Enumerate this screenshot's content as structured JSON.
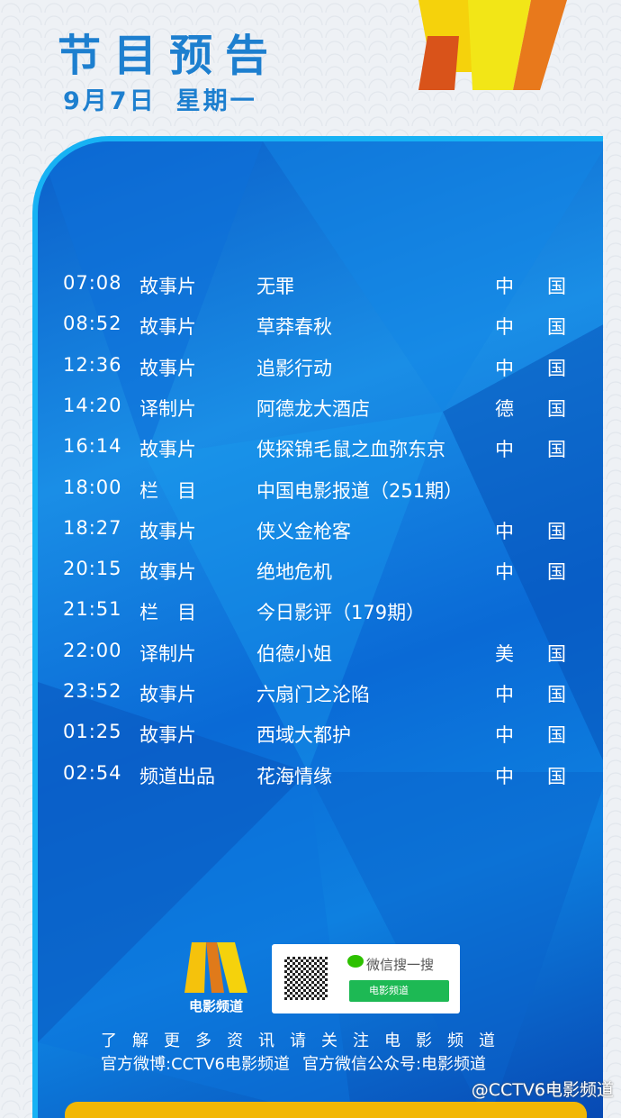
{
  "header": {
    "title": "节目预告",
    "date": "9月7日",
    "weekday": "星期一"
  },
  "schedule": [
    {
      "time": "07:08",
      "type": "故事片",
      "title": "无罪",
      "country": [
        "中",
        "国"
      ]
    },
    {
      "time": "08:52",
      "type": "故事片",
      "title": "草莽春秋",
      "country": [
        "中",
        "国"
      ]
    },
    {
      "time": "12:36",
      "type": "故事片",
      "title": "追影行动",
      "country": [
        "中",
        "国"
      ]
    },
    {
      "time": "14:20",
      "type": "译制片",
      "title": "阿德龙大酒店",
      "country": [
        "德",
        "国"
      ]
    },
    {
      "time": "16:14",
      "type": "故事片",
      "title": "侠探锦毛鼠之血弥东京",
      "country": [
        "中",
        "国"
      ]
    },
    {
      "time": "18:00",
      "type": "栏　目",
      "title": "中国电影报道（251期）",
      "country": [
        "",
        ""
      ]
    },
    {
      "time": "18:27",
      "type": "故事片",
      "title": "侠义金枪客",
      "country": [
        "中",
        "国"
      ]
    },
    {
      "time": "20:15",
      "type": "故事片",
      "title": "绝地危机",
      "country": [
        "中",
        "国"
      ]
    },
    {
      "time": "21:51",
      "type": "栏　目",
      "title": "今日影评（179期）",
      "country": [
        "",
        ""
      ]
    },
    {
      "time": "22:00",
      "type": "译制片",
      "title": "伯德小姐",
      "country": [
        "美",
        "国"
      ]
    },
    {
      "time": "23:52",
      "type": "故事片",
      "title": "六扇门之沦陷",
      "country": [
        "中",
        "国"
      ]
    },
    {
      "time": "01:25",
      "type": "故事片",
      "title": "西域大都护",
      "country": [
        "中",
        "国"
      ]
    },
    {
      "time": "02:54",
      "type": "频道出品",
      "title": "花海情缘",
      "country": [
        "中",
        "国"
      ]
    }
  ],
  "footer": {
    "logo_text": "电影频道",
    "wechat_search": "微信搜一搜",
    "wechat_button": "电影频道",
    "info_line1": "了解更多资讯请关注电影频道",
    "weibo": "官方微博:CCTV6电影频道",
    "wechat_account": "官方微信公众号:电影频道"
  },
  "watermark": "@CCTV6电影频道",
  "colors": {
    "title": "#1d7fcf",
    "panel_border": "#17b2f4",
    "wechat_green": "#1db954",
    "accent_yellow": "#f2b705"
  }
}
